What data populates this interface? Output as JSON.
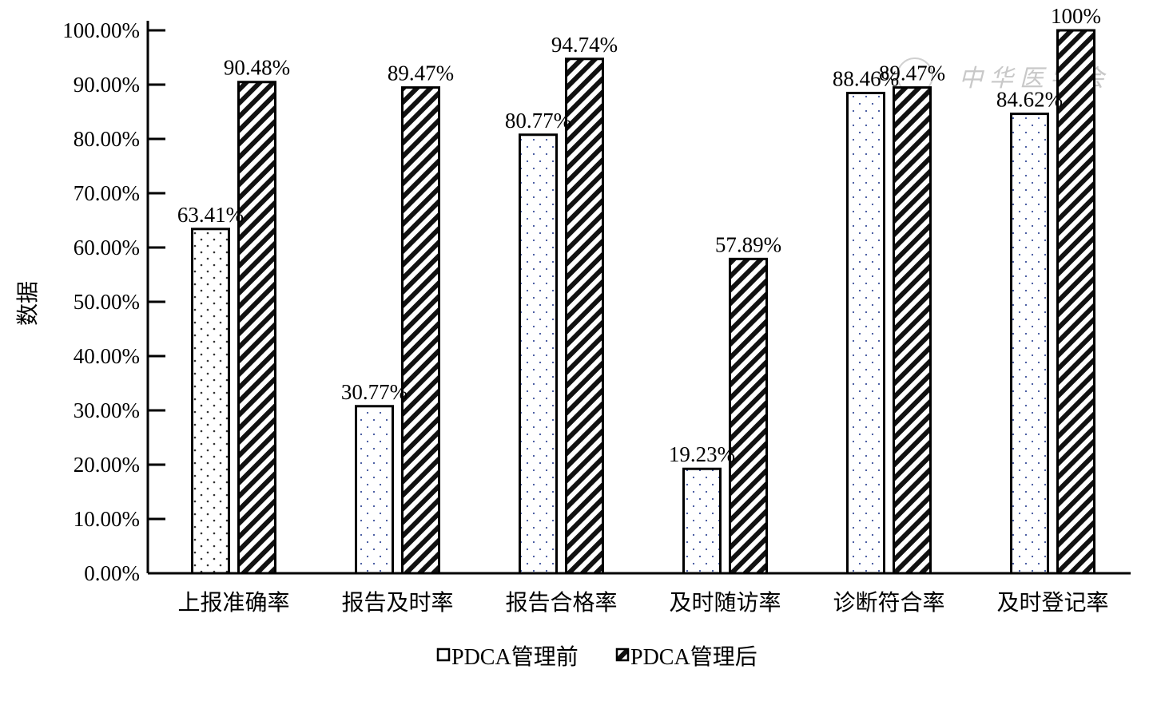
{
  "chart_data": {
    "type": "bar",
    "title": "",
    "xlabel": "",
    "ylabel": "数据",
    "ylim": [
      0,
      1
    ],
    "yticks": [
      "0.00%",
      "10.00%",
      "20.00%",
      "30.00%",
      "40.00%",
      "50.00%",
      "60.00%",
      "70.00%",
      "80.00%",
      "90.00%",
      "100.00%"
    ],
    "categories": [
      "上报准确率",
      "报告及时率",
      "报告合格率",
      "及时随访率",
      "诊断符合率",
      "及时登记率"
    ],
    "series": [
      {
        "name": "PDCA管理前",
        "values": [
          0.6341,
          0.3077,
          0.8077,
          0.1923,
          0.8846,
          0.8462
        ],
        "labels": [
          "63.41%",
          "30.77%",
          "80.77%",
          "19.23%",
          "88.46%",
          "84.62%"
        ]
      },
      {
        "name": "PDCA管理后",
        "values": [
          0.9048,
          0.8947,
          0.9474,
          0.5789,
          0.8947,
          1.0
        ],
        "labels": [
          "90.48%",
          "89.47%",
          "94.74%",
          "57.89%",
          "89.47%",
          "100%"
        ]
      }
    ],
    "legend_position": "bottom",
    "grid": false,
    "watermark": "中华医学会"
  }
}
